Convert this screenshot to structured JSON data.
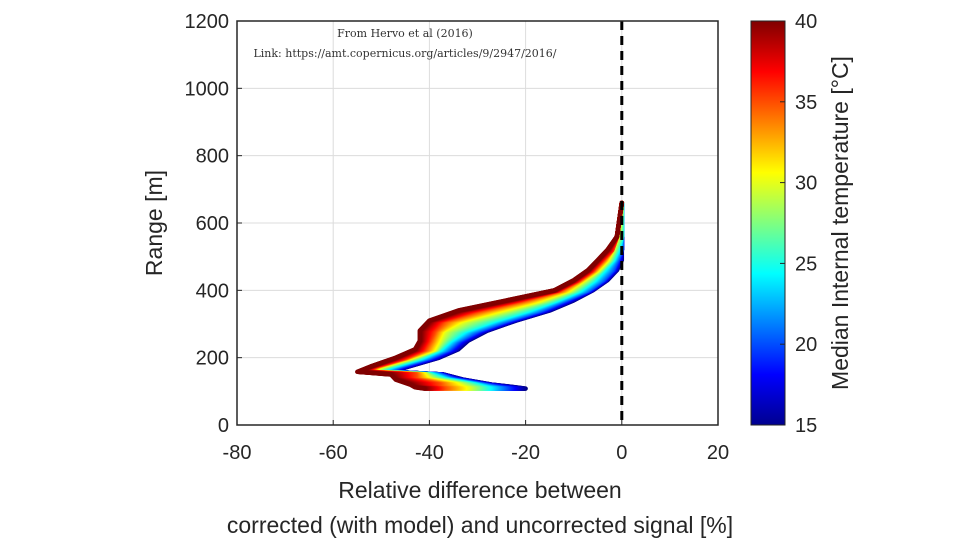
{
  "source_note": {
    "line1": "From Hervo et al (2016)",
    "line2": "Link: https://amt.copernicus.org/articles/9/2947/2016/"
  },
  "chart_data": {
    "type": "line",
    "title": "",
    "xlabel_line1": "Relative  difference between",
    "xlabel_line2": "corrected (with model) and uncorrected signal [%]",
    "ylabel": "Range [m]",
    "xlim": [
      -80,
      20
    ],
    "ylim": [
      0,
      1200
    ],
    "xticks": [
      -80,
      -60,
      -40,
      -20,
      0,
      20
    ],
    "yticks": [
      0,
      200,
      400,
      600,
      800,
      1000,
      1200
    ],
    "grid": true,
    "reference_line": {
      "x": 0,
      "style": "dashed",
      "color": "#000000"
    },
    "colorbar": {
      "label": "Median Internal  temperature [°C]",
      "min": 15,
      "max": 40,
      "ticks": [
        15,
        20,
        25,
        30,
        35,
        40
      ],
      "colormap": "jet"
    },
    "series": [
      {
        "temperature": 15,
        "x": [
          -20,
          -22,
          -27,
          -33,
          -37,
          -48,
          -44,
          -38,
          -34,
          -32,
          -28,
          -22,
          -15,
          -10,
          -6,
          -3,
          -1,
          0,
          0,
          0,
          0
        ],
        "y": [
          108,
          112,
          120,
          135,
          150,
          158,
          175,
          200,
          225,
          250,
          280,
          310,
          340,
          370,
          400,
          430,
          460,
          490,
          520,
          560,
          660
        ]
      },
      {
        "temperature": 20,
        "x": [
          -24,
          -26,
          -29,
          -35,
          -38,
          -49,
          -46,
          -40,
          -36,
          -34,
          -30,
          -24,
          -17,
          -12,
          -7,
          -4,
          -2,
          -1,
          0,
          0,
          0
        ],
        "y": [
          108,
          112,
          120,
          135,
          150,
          158,
          175,
          200,
          225,
          250,
          280,
          310,
          340,
          370,
          400,
          430,
          460,
          490,
          520,
          560,
          660
        ]
      },
      {
        "temperature": 25,
        "x": [
          -28,
          -29,
          -31,
          -37,
          -40,
          -51,
          -48,
          -42,
          -38,
          -36,
          -33,
          -27,
          -20,
          -14,
          -9,
          -6,
          -4,
          -2,
          -1,
          0,
          0
        ],
        "y": [
          108,
          112,
          120,
          135,
          150,
          158,
          175,
          200,
          225,
          250,
          280,
          310,
          340,
          370,
          400,
          430,
          460,
          490,
          520,
          560,
          660
        ]
      },
      {
        "temperature": 30,
        "x": [
          -32,
          -33,
          -34,
          -40,
          -41,
          -52,
          -50,
          -44,
          -39,
          -38,
          -37,
          -33,
          -25,
          -17,
          -11,
          -8,
          -5,
          -3,
          -2,
          -1,
          0
        ],
        "y": [
          108,
          112,
          120,
          135,
          150,
          158,
          175,
          200,
          225,
          250,
          280,
          310,
          340,
          370,
          400,
          430,
          460,
          490,
          520,
          560,
          660
        ]
      },
      {
        "temperature": 35,
        "x": [
          -37,
          -38,
          -38,
          -43,
          -43,
          -53,
          -51,
          -45,
          -41,
          -40,
          -39,
          -37,
          -30,
          -21,
          -13,
          -9,
          -6,
          -4,
          -2,
          -1,
          0
        ],
        "y": [
          108,
          112,
          120,
          135,
          150,
          158,
          175,
          200,
          225,
          250,
          280,
          310,
          340,
          370,
          400,
          430,
          460,
          490,
          520,
          560,
          660
        ]
      },
      {
        "temperature": 40,
        "x": [
          -41,
          -43,
          -44,
          -47,
          -48,
          -55,
          -52,
          -47,
          -43,
          -42,
          -42,
          -40,
          -34,
          -24,
          -14,
          -10,
          -7,
          -5,
          -3,
          -1,
          0
        ],
        "y": [
          108,
          112,
          120,
          135,
          150,
          158,
          175,
          200,
          225,
          250,
          280,
          310,
          340,
          370,
          400,
          430,
          460,
          490,
          520,
          560,
          660
        ]
      }
    ]
  }
}
